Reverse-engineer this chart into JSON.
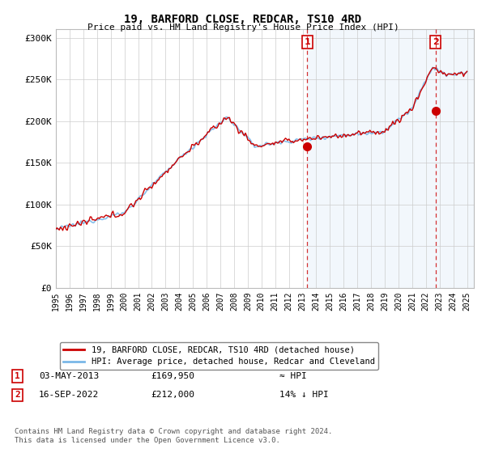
{
  "title": "19, BARFORD CLOSE, REDCAR, TS10 4RD",
  "subtitle": "Price paid vs. HM Land Registry's House Price Index (HPI)",
  "legend_line1": "19, BARFORD CLOSE, REDCAR, TS10 4RD (detached house)",
  "legend_line2": "HPI: Average price, detached house, Redcar and Cleveland",
  "annotation1_label": "1",
  "annotation1_date": "03-MAY-2013",
  "annotation1_price": "£169,950",
  "annotation1_hpi": "≈ HPI",
  "annotation2_label": "2",
  "annotation2_date": "16-SEP-2022",
  "annotation2_price": "£212,000",
  "annotation2_hpi": "14% ↓ HPI",
  "footer": "Contains HM Land Registry data © Crown copyright and database right 2024.\nThis data is licensed under the Open Government Licence v3.0.",
  "sale1_x": 2013.35,
  "sale1_y": 169950,
  "sale2_x": 2022.71,
  "sale2_y": 212000,
  "hpi_color": "#7ab8e8",
  "price_color": "#cc0000",
  "shade_color": "#ddeeff",
  "background_color": "#ffffff",
  "grid_color": "#cccccc",
  "ylim": [
    0,
    310000
  ],
  "xlim_start": 1995,
  "xlim_end": 2025.5
}
